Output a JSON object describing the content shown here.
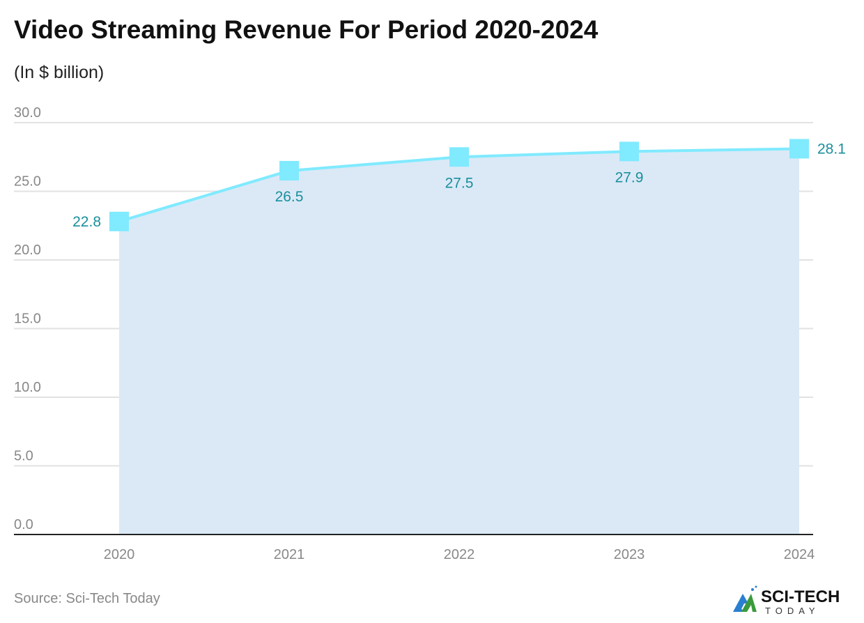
{
  "title": "Video Streaming Revenue For Period 2020-2024",
  "subtitle": "(In $ billion)",
  "source": "Source: Sci-Tech Today",
  "logo": {
    "text_main": "SCI-TECH",
    "text_sub": "TODAY"
  },
  "colors": {
    "line": "#80eaff",
    "area": "#dbe9f6",
    "label": "#1a8f9c",
    "grid": "#e2e2e2",
    "axis": "#222222"
  },
  "chart_data": {
    "type": "area",
    "categories": [
      "2020",
      "2021",
      "2022",
      "2023",
      "2024"
    ],
    "values": [
      22.8,
      26.5,
      27.5,
      27.9,
      28.1
    ],
    "data_labels": [
      "22.8",
      "26.5",
      "27.5",
      "27.9",
      "28.1"
    ],
    "y_ticks": [
      "0.0",
      "5.0",
      "10.0",
      "15.0",
      "20.0",
      "25.0",
      "30.0"
    ],
    "ylim": [
      0,
      30
    ],
    "grid": true,
    "marker": "square",
    "title": "Video Streaming Revenue For Period 2020-2024",
    "ylabel": "(In $ billion)"
  }
}
